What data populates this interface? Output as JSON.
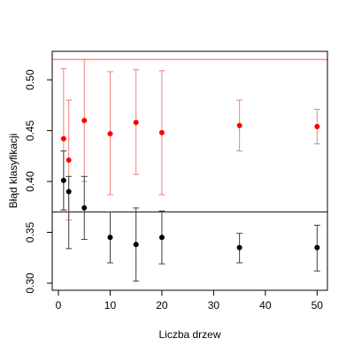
{
  "chart_data": {
    "type": "scatter",
    "title": "",
    "xlabel": "Liczba drzew",
    "ylabel": "Błąd klasyfikacji",
    "xlim": [
      -1.2,
      52
    ],
    "ylim": [
      0.293,
      0.528
    ],
    "x_ticks": [
      0,
      10,
      20,
      30,
      40,
      50
    ],
    "y_ticks": [
      0.3,
      0.35,
      0.4,
      0.45,
      0.5
    ],
    "y_tick_labels": [
      "0.30",
      "0.35",
      "0.40",
      "0.45",
      "0.50"
    ],
    "grid": false,
    "legend": "none",
    "series": [
      {
        "color": "#ff0000",
        "error_bar_color": "#f08080",
        "points": [
          {
            "x": 1,
            "y": 0.442,
            "lo": 0.372,
            "hi": 0.511
          },
          {
            "x": 2,
            "y": 0.421,
            "lo": 0.362,
            "hi": 0.48
          },
          {
            "x": 5,
            "y": 0.46,
            "lo": 0.4,
            "hi": 0.52
          },
          {
            "x": 10,
            "y": 0.447,
            "lo": 0.387,
            "hi": 0.508
          },
          {
            "x": 15,
            "y": 0.458,
            "lo": 0.407,
            "hi": 0.51
          },
          {
            "x": 20,
            "y": 0.448,
            "lo": 0.387,
            "hi": 0.509
          },
          {
            "x": 35,
            "y": 0.455,
            "lo": 0.43,
            "hi": 0.48
          },
          {
            "x": 50,
            "y": 0.454,
            "lo": 0.437,
            "hi": 0.471
          }
        ]
      },
      {
        "color": "#000000",
        "error_bar_color": "#404040",
        "points": [
          {
            "x": 1,
            "y": 0.401,
            "lo": 0.372,
            "hi": 0.43
          },
          {
            "x": 2,
            "y": 0.39,
            "lo": 0.334,
            "hi": 0.405
          },
          {
            "x": 5,
            "y": 0.374,
            "lo": 0.343,
            "hi": 0.405
          },
          {
            "x": 10,
            "y": 0.345,
            "lo": 0.32,
            "hi": 0.37
          },
          {
            "x": 15,
            "y": 0.338,
            "lo": 0.302,
            "hi": 0.374
          },
          {
            "x": 20,
            "y": 0.345,
            "lo": 0.319,
            "hi": 0.371
          },
          {
            "x": 35,
            "y": 0.335,
            "lo": 0.32,
            "hi": 0.349
          },
          {
            "x": 50,
            "y": 0.335,
            "lo": 0.312,
            "hi": 0.357
          }
        ]
      }
    ],
    "reference_lines": [
      {
        "y": 0.52,
        "color": "#ff6b6b"
      },
      {
        "y": 0.37,
        "color": "#333333"
      }
    ]
  }
}
